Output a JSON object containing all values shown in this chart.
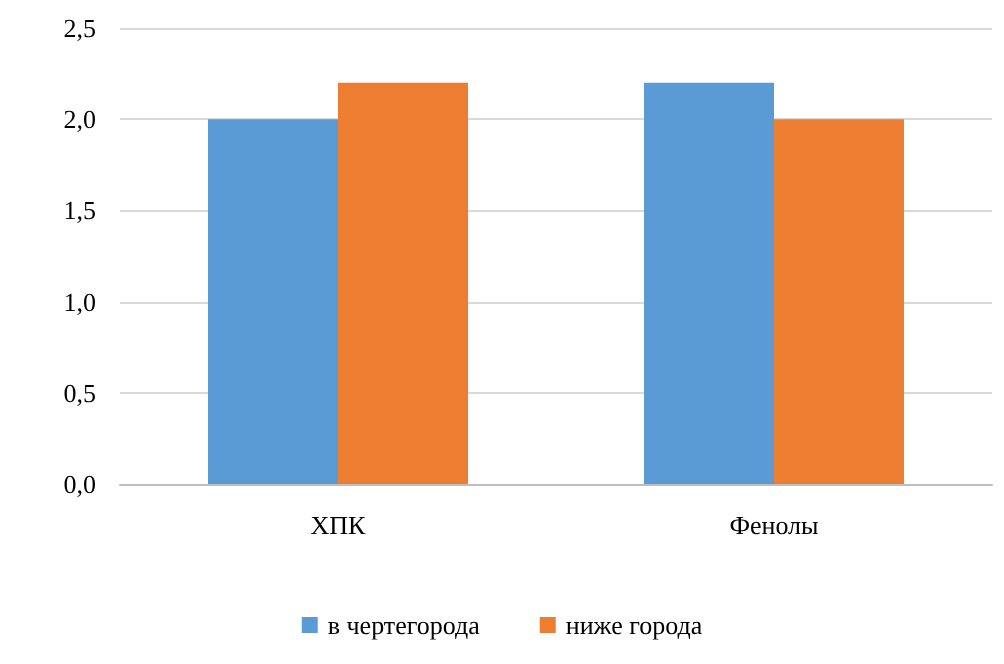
{
  "chart_data": {
    "type": "bar",
    "categories": [
      "ХПК",
      "Фенолы"
    ],
    "series": [
      {
        "name": "в чертегорода",
        "color": "#5b9bd5",
        "values": [
          2.0,
          2.2
        ]
      },
      {
        "name": "ниже города",
        "color": "#ed7d31",
        "values": [
          2.2,
          2.0
        ]
      }
    ],
    "ylim": [
      0,
      2.5
    ],
    "yticks": [
      {
        "value": 0,
        "label": "0,0"
      },
      {
        "value": 0.5,
        "label": "0,5"
      },
      {
        "value": 1,
        "label": "1,0"
      },
      {
        "value": 1.5,
        "label": "1,5"
      },
      {
        "value": 2,
        "label": "2,0"
      },
      {
        "value": 2.5,
        "label": "2,5"
      }
    ],
    "grid": "y",
    "legend": "bottom"
  }
}
